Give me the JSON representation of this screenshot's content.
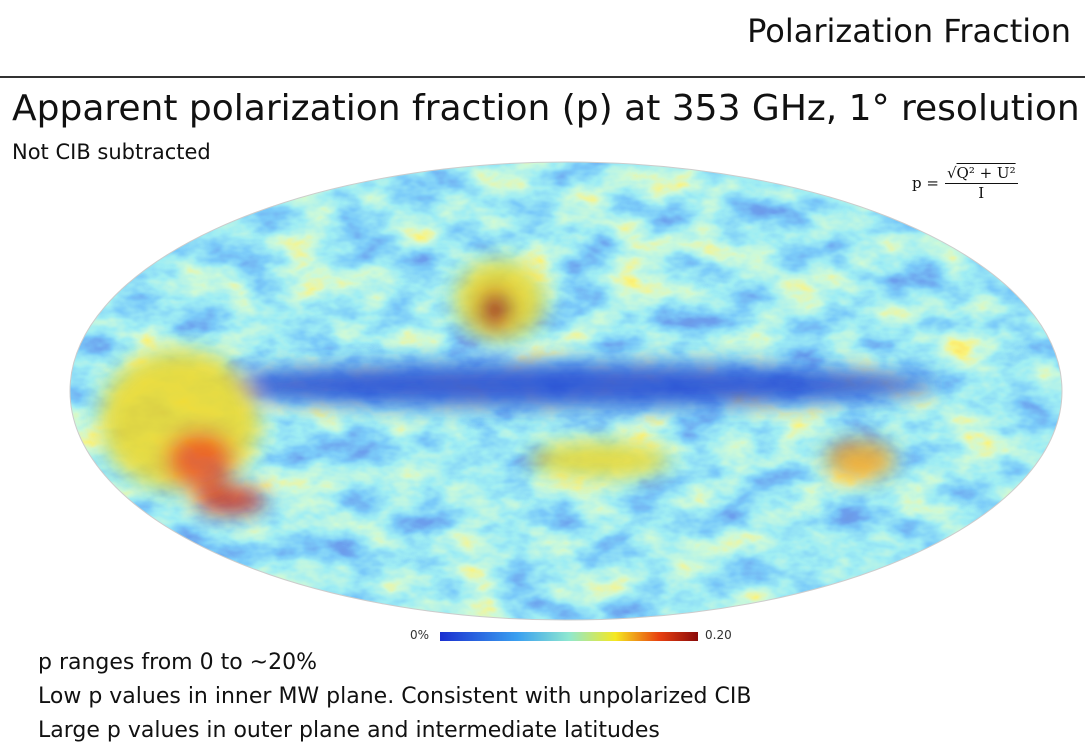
{
  "header": {
    "title": "Polarization Fraction"
  },
  "slide": {
    "title": "Apparent polarization fraction (p) at 353 GHz, 1° resolution",
    "subtitle": "Not CIB subtracted"
  },
  "formula": {
    "lhs": "p =",
    "numerator": "Q² + U²",
    "denominator": "I"
  },
  "colorbar": {
    "min_label": "0%",
    "max_label": "0.20"
  },
  "bullets": [
    "p ranges from 0 to ~20%",
    "Low p values in inner MW plane. Consistent with unpolarized CIB",
    "Large p values in outer plane and intermediate latitudes"
  ]
}
